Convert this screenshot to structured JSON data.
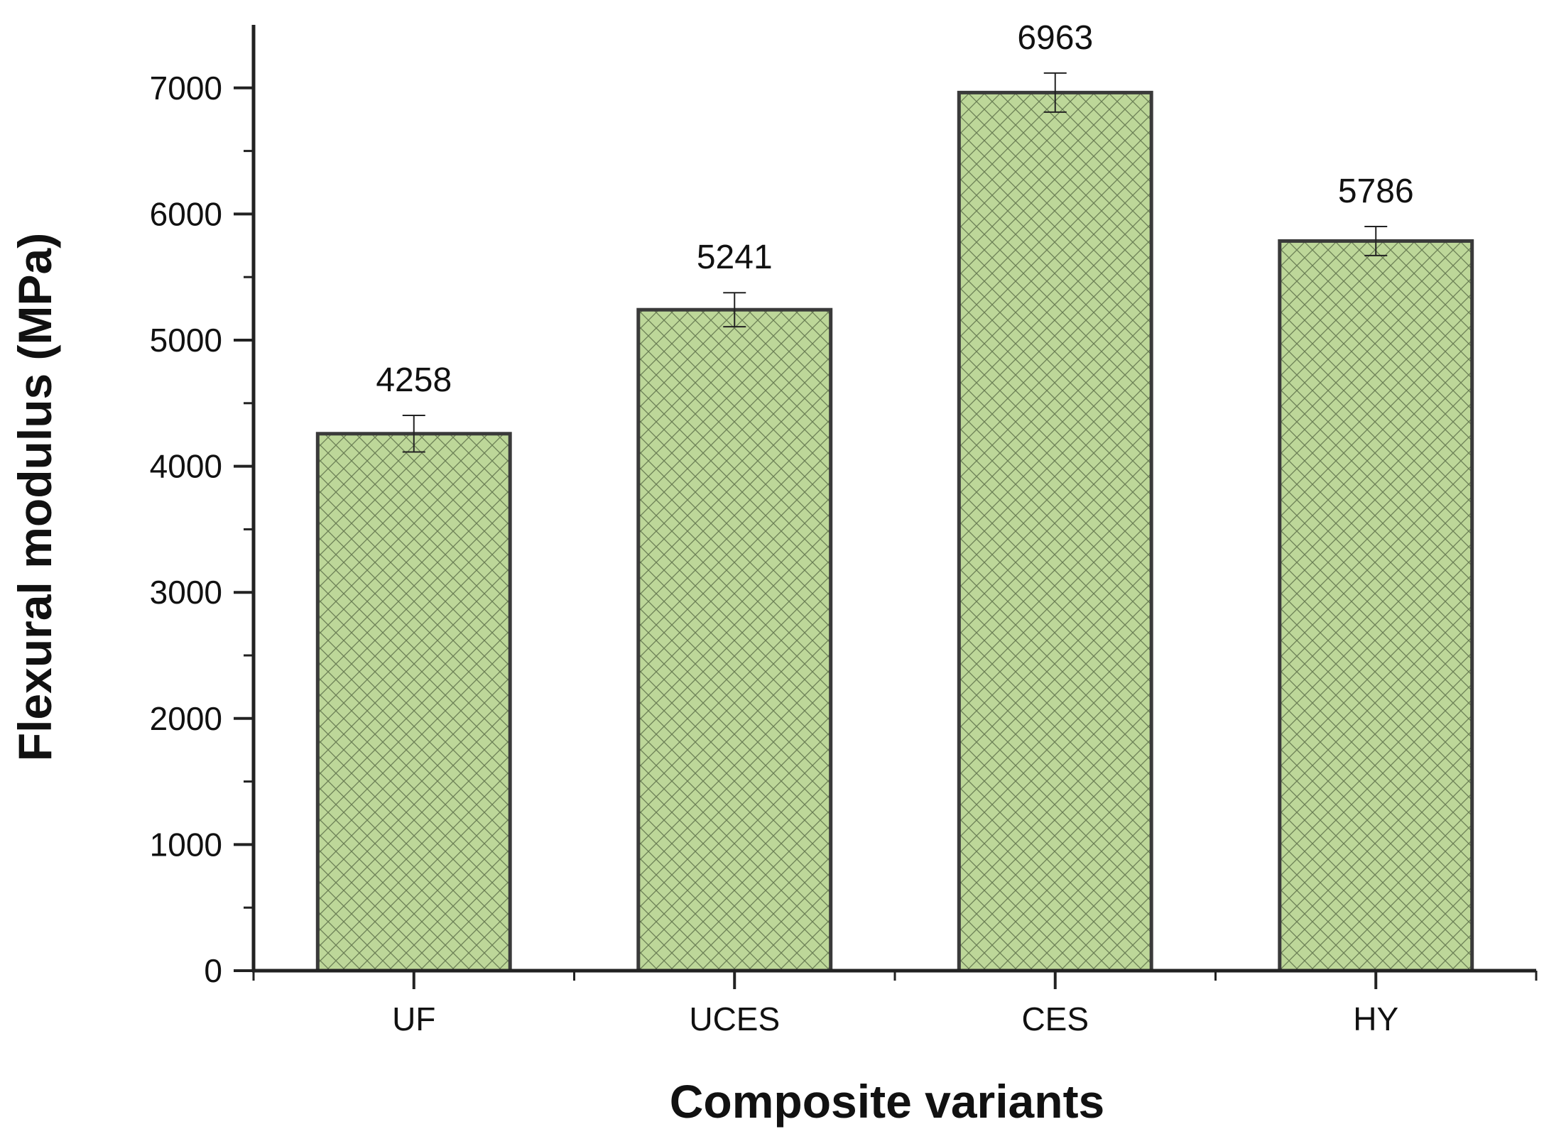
{
  "chart_data": {
    "type": "bar",
    "title": "",
    "xlabel": "Composite variants",
    "ylabel": "Flexural modulus (MPa)",
    "categories": [
      "UF",
      "UCES",
      "CES",
      "HY"
    ],
    "values": [
      4258,
      5241,
      6963,
      5786
    ],
    "value_labels": [
      "4258",
      "5241",
      "6963",
      "5786"
    ],
    "error": [
      145,
      135,
      155,
      115
    ],
    "ylim": [
      0,
      7500
    ],
    "yticks": [
      0,
      1000,
      2000,
      3000,
      4000,
      5000,
      6000,
      7000
    ],
    "ytick_labels": [
      "0",
      "1000",
      "2000",
      "3000",
      "4000",
      "5000",
      "6000",
      "7000"
    ],
    "grid": false,
    "bar_fill": "#bdd799",
    "bar_edge": "#3a3a3a",
    "hatch": "crosshatch"
  }
}
